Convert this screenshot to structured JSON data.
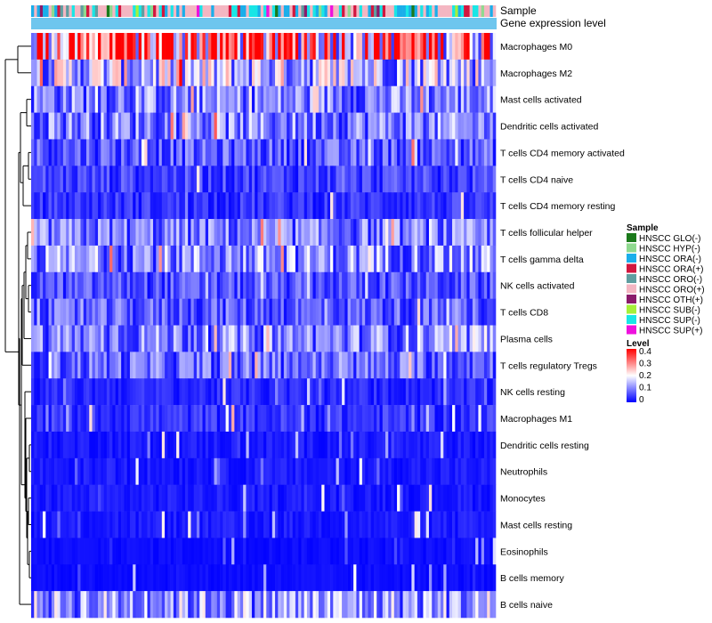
{
  "chart_data": {
    "type": "heatmap",
    "title": "",
    "annotation_tracks": [
      "Sample",
      "Gene expression level"
    ],
    "rows": [
      "Macrophages M0",
      "Macrophages M2",
      "Mast cells activated",
      "Dendritic cells activated",
      "T cells CD4 memory activated",
      "T cells CD4 naive",
      "T cells CD4 memory resting",
      "T cells follicular helper",
      "T cells gamma delta",
      "NK cells activated",
      "T cells CD8",
      "Plasma cells",
      "T cells regulatory  Tregs",
      "NK cells resting",
      "Macrophages M1",
      "Dendritic cells resting",
      "Neutrophils",
      "Monocytes",
      "Mast cells resting",
      "Eosinophils",
      "B cells memory",
      "B cells naive"
    ],
    "row_mean_levels": [
      0.3,
      0.15,
      0.1,
      0.1,
      0.07,
      0.05,
      0.04,
      0.09,
      0.11,
      0.06,
      0.07,
      0.1,
      0.08,
      0.03,
      0.04,
      0.02,
      0.02,
      0.02,
      0.02,
      0.01,
      0.01,
      0.12
    ],
    "sample_legend": {
      "title": "Sample",
      "entries": [
        {
          "label": "HNSCC GLO(-)",
          "color": "#1b7a1b"
        },
        {
          "label": "HNSCC HYP(-)",
          "color": "#8fd98f"
        },
        {
          "label": "HNSCC ORA(-)",
          "color": "#1aaeea"
        },
        {
          "label": "HNSCC ORA(+)",
          "color": "#d2173f"
        },
        {
          "label": "HNSCC ORO(-)",
          "color": "#5f9ea0"
        },
        {
          "label": "HNSCC ORO(+)",
          "color": "#f4b6c2"
        },
        {
          "label": "HNSCC OTH(+)",
          "color": "#8b1a6b"
        },
        {
          "label": "HNSCC SUB(-)",
          "color": "#a6f03a"
        },
        {
          "label": "HNSCC SUP(-)",
          "color": "#19e6e6"
        },
        {
          "label": "HNSCC SUP(+)",
          "color": "#ee11dd"
        }
      ]
    },
    "level_legend": {
      "title": "Level",
      "ticks": [
        "0.4",
        "0.3",
        "0.2",
        "0.1",
        "0"
      ],
      "range": [
        0,
        0.4
      ],
      "colors": [
        "#0000ff",
        "#ffffff",
        "#ff0000"
      ]
    },
    "expression_track_color": "#6ec6ee",
    "n_samples": 160
  }
}
